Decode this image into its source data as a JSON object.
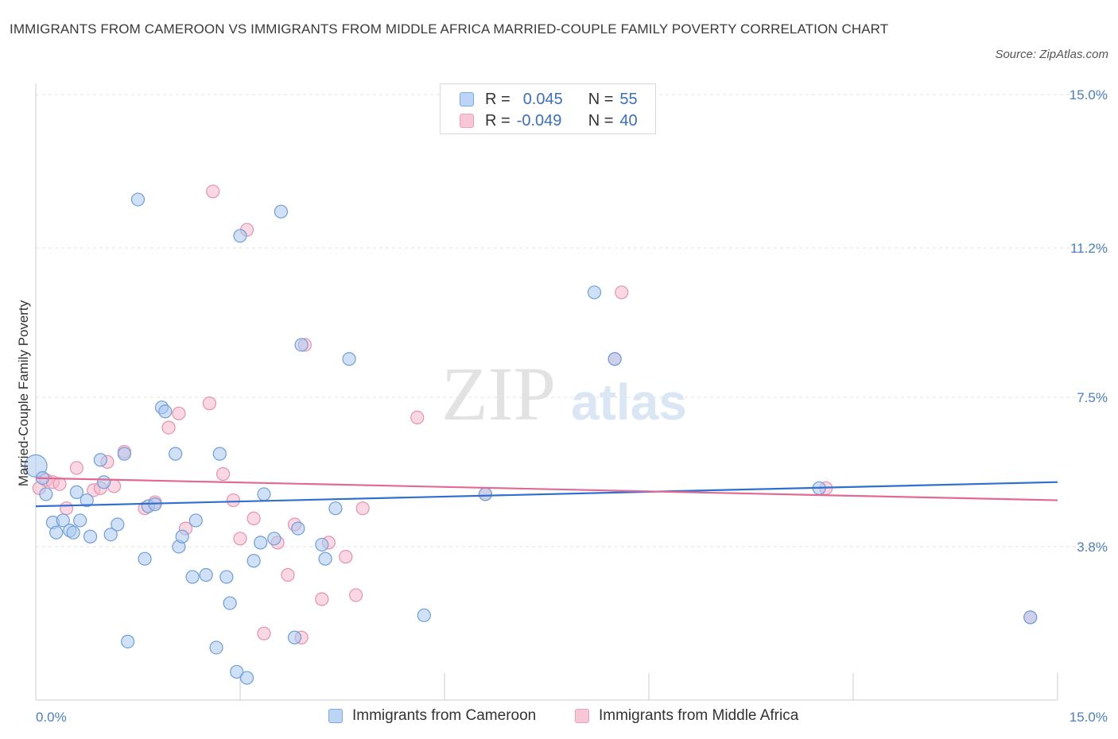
{
  "title": "IMMIGRANTS FROM CAMEROON VS IMMIGRANTS FROM MIDDLE AFRICA MARRIED-COUPLE FAMILY POVERTY CORRELATION CHART",
  "source": "Source: ZipAtlas.com",
  "watermark": {
    "zip": "ZIP",
    "atlas": "atlas"
  },
  "legend": {
    "rows": [
      {
        "r_label": "R =",
        "r_value": "0.045",
        "n_label": "N =",
        "n_value": "55"
      },
      {
        "r_label": "R =",
        "r_value": "-0.049",
        "n_label": "N =",
        "n_value": "40"
      }
    ]
  },
  "colors": {
    "blue_fill": "#aac8f0",
    "blue_stroke": "#6e9ed8",
    "blue_line": "#2f6fce",
    "pink_fill": "#f5b8cc",
    "pink_stroke": "#e890ae",
    "pink_line": "#e06a95",
    "tick_text": "#4a7fc7"
  },
  "chart_data": {
    "type": "scatter",
    "title": "IMMIGRANTS FROM CAMEROON VS IMMIGRANTS FROM MIDDLE AFRICA MARRIED-COUPLE FAMILY POVERTY CORRELATION CHART",
    "xlabel": "",
    "ylabel": "Married-Couple Family Poverty",
    "xlim": [
      0,
      15
    ],
    "ylim": [
      0,
      15
    ],
    "x_tick_labels": [
      "0.0%",
      "15.0%"
    ],
    "y_ticks": [
      3.8,
      7.5,
      11.2,
      15.0
    ],
    "y_tick_labels": [
      "3.8%",
      "7.5%",
      "11.2%",
      "15.0%"
    ],
    "grid": true,
    "legend_position": "top-center",
    "series": [
      {
        "name": "Immigrants from Cameroon",
        "color": "blue",
        "trend": [
          [
            0,
            4.8
          ],
          [
            15,
            5.4
          ]
        ],
        "points": [
          [
            0.0,
            5.8
          ],
          [
            0.1,
            5.5
          ],
          [
            0.15,
            5.1
          ],
          [
            0.25,
            4.4
          ],
          [
            0.3,
            4.15
          ],
          [
            0.4,
            4.45
          ],
          [
            0.5,
            4.2
          ],
          [
            0.55,
            4.15
          ],
          [
            0.6,
            5.15
          ],
          [
            0.65,
            4.45
          ],
          [
            0.75,
            4.95
          ],
          [
            0.8,
            4.05
          ],
          [
            0.95,
            5.95
          ],
          [
            1.0,
            5.4
          ],
          [
            1.1,
            4.1
          ],
          [
            1.2,
            4.35
          ],
          [
            1.3,
            6.1
          ],
          [
            1.35,
            1.45
          ],
          [
            1.5,
            12.4
          ],
          [
            1.6,
            3.5
          ],
          [
            1.65,
            4.8
          ],
          [
            1.75,
            4.85
          ],
          [
            1.85,
            7.25
          ],
          [
            1.9,
            7.15
          ],
          [
            2.05,
            6.1
          ],
          [
            2.1,
            3.8
          ],
          [
            2.15,
            4.05
          ],
          [
            2.3,
            3.05
          ],
          [
            2.35,
            4.45
          ],
          [
            2.5,
            3.1
          ],
          [
            2.65,
            1.3
          ],
          [
            2.7,
            6.1
          ],
          [
            2.8,
            3.05
          ],
          [
            2.85,
            2.4
          ],
          [
            2.95,
            0.7
          ],
          [
            3.0,
            11.5
          ],
          [
            3.1,
            0.55
          ],
          [
            3.2,
            3.45
          ],
          [
            3.3,
            3.9
          ],
          [
            3.35,
            5.1
          ],
          [
            3.5,
            4.0
          ],
          [
            3.6,
            12.1
          ],
          [
            3.8,
            1.55
          ],
          [
            3.85,
            4.25
          ],
          [
            3.9,
            8.8
          ],
          [
            4.2,
            3.85
          ],
          [
            4.25,
            3.5
          ],
          [
            4.4,
            4.75
          ],
          [
            4.6,
            8.45
          ],
          [
            5.7,
            2.1
          ],
          [
            6.6,
            5.1
          ],
          [
            8.2,
            10.1
          ],
          [
            8.5,
            8.45
          ],
          [
            11.5,
            5.25
          ],
          [
            14.6,
            2.05
          ]
        ]
      },
      {
        "name": "Immigrants from Middle Africa",
        "color": "pink",
        "trend": [
          [
            0,
            5.5
          ],
          [
            15,
            4.95
          ]
        ],
        "points": [
          [
            0.05,
            5.25
          ],
          [
            0.15,
            5.45
          ],
          [
            0.25,
            5.4
          ],
          [
            0.35,
            5.35
          ],
          [
            0.45,
            4.75
          ],
          [
            0.6,
            5.75
          ],
          [
            0.85,
            5.2
          ],
          [
            0.95,
            5.25
          ],
          [
            1.05,
            5.9
          ],
          [
            1.15,
            5.3
          ],
          [
            1.3,
            6.15
          ],
          [
            1.6,
            4.75
          ],
          [
            1.75,
            4.9
          ],
          [
            1.95,
            6.75
          ],
          [
            2.1,
            7.1
          ],
          [
            2.2,
            4.25
          ],
          [
            2.55,
            7.35
          ],
          [
            2.6,
            12.6
          ],
          [
            2.75,
            5.6
          ],
          [
            2.9,
            4.95
          ],
          [
            3.0,
            4.0
          ],
          [
            3.1,
            11.65
          ],
          [
            3.2,
            4.5
          ],
          [
            3.35,
            1.65
          ],
          [
            3.55,
            3.9
          ],
          [
            3.7,
            3.1
          ],
          [
            3.8,
            4.35
          ],
          [
            3.9,
            1.55
          ],
          [
            3.95,
            8.8
          ],
          [
            4.2,
            2.5
          ],
          [
            4.3,
            3.9
          ],
          [
            4.55,
            3.55
          ],
          [
            4.7,
            2.6
          ],
          [
            4.8,
            4.75
          ],
          [
            5.6,
            7.0
          ],
          [
            6.6,
            5.1
          ],
          [
            8.5,
            8.45
          ],
          [
            8.6,
            10.1
          ],
          [
            11.6,
            5.25
          ],
          [
            14.6,
            2.05
          ]
        ]
      }
    ]
  },
  "bottom_legend": [
    "Immigrants from Cameroon",
    "Immigrants from Middle Africa"
  ]
}
